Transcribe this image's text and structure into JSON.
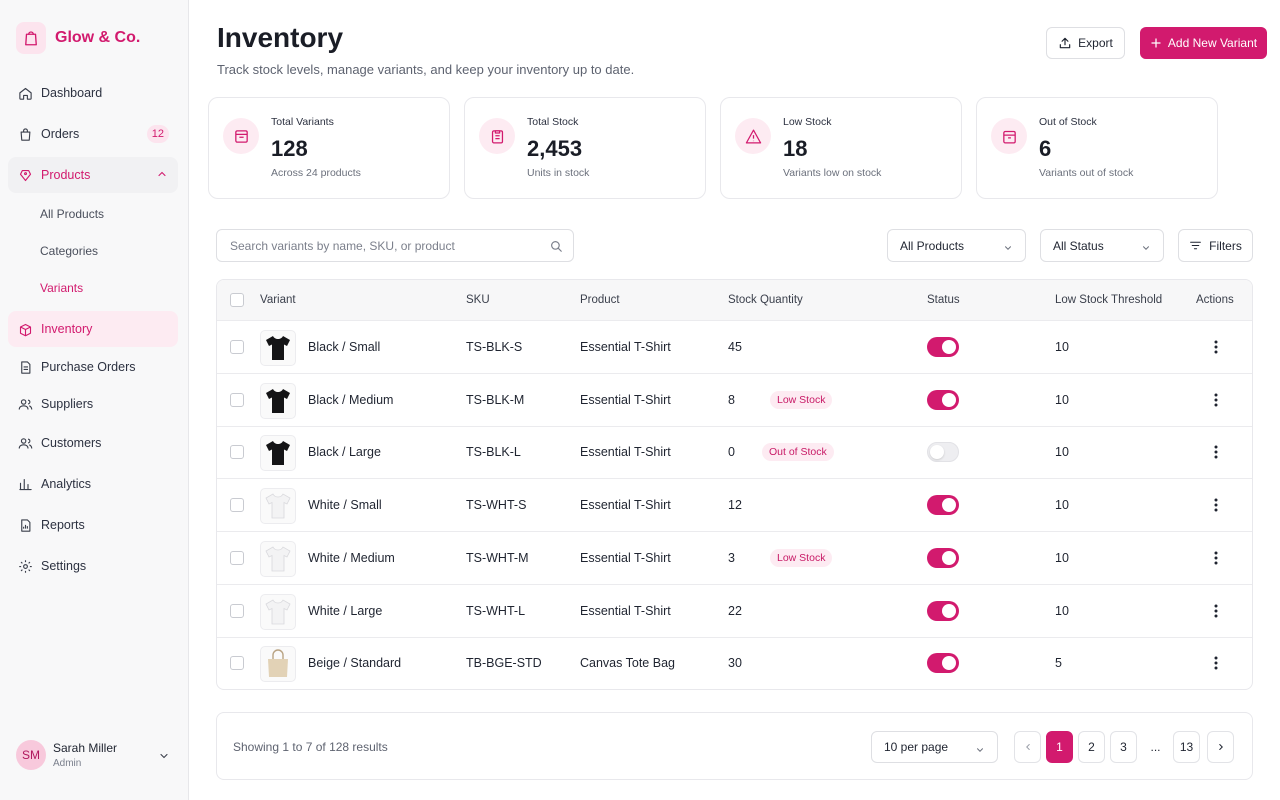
{
  "brand": {
    "name": "Glow & Co.",
    "logo_icon": "shopping-bag-icon"
  },
  "nav": {
    "dashboard": "Dashboard",
    "orders": "Orders",
    "orders_badge": "12",
    "products": "Products",
    "products_sub": [
      "All Products",
      "Categories",
      "Variants"
    ],
    "inventory": "Inventory",
    "purchase_orders": "Purchase Orders",
    "suppliers": "Suppliers",
    "customers": "Customers",
    "analytics": "Analytics",
    "reports": "Reports",
    "settings": "Settings"
  },
  "user": {
    "initials": "SM",
    "name": "Sarah Miller",
    "role": "Admin"
  },
  "header": {
    "title": "Inventory",
    "subtitle": "Track stock levels, manage variants, and keep your inventory up to date.",
    "export_label": "Export",
    "add_label": "Add New Variant"
  },
  "stats": [
    {
      "label": "Total Variants",
      "value": "128",
      "note": "Across 24 products",
      "icon": "box-icon"
    },
    {
      "label": "Total Stock",
      "value": "2,453",
      "note": "Units in stock",
      "icon": "clipboard-icon"
    },
    {
      "label": "Low Stock",
      "value": "18",
      "note": "Variants low on stock",
      "icon": "warning-icon"
    },
    {
      "label": "Out of Stock",
      "value": "6",
      "note": "Variants out of stock",
      "icon": "archive-icon"
    }
  ],
  "toolbar": {
    "search_placeholder": "Search variants by name, SKU, or product",
    "product_filter": "All Products",
    "status_filter": "All Status",
    "filters_label": "Filters"
  },
  "table": {
    "columns": [
      "Variant",
      "SKU",
      "Product",
      "Stock Quantity",
      "Status",
      "Low Stock Threshold",
      "Actions"
    ],
    "rows": [
      {
        "variant": "Black / Small",
        "sku": "TS-BLK-S",
        "product": "Essential T-Shirt",
        "stock": "45",
        "badge": "",
        "active": true,
        "threshold": "10",
        "thumb": "black-tshirt"
      },
      {
        "variant": "Black / Medium",
        "sku": "TS-BLK-M",
        "product": "Essential T-Shirt",
        "stock": "8",
        "badge": "Low Stock",
        "active": true,
        "threshold": "10",
        "thumb": "black-tshirt"
      },
      {
        "variant": "Black / Large",
        "sku": "TS-BLK-L",
        "product": "Essential T-Shirt",
        "stock": "0",
        "badge": "Out of Stock",
        "active": false,
        "threshold": "10",
        "thumb": "black-tshirt"
      },
      {
        "variant": "White / Small",
        "sku": "TS-WHT-S",
        "product": "Essential T-Shirt",
        "stock": "12",
        "badge": "",
        "active": true,
        "threshold": "10",
        "thumb": "white-tshirt"
      },
      {
        "variant": "White / Medium",
        "sku": "TS-WHT-M",
        "product": "Essential T-Shirt",
        "stock": "3",
        "badge": "Low Stock",
        "active": true,
        "threshold": "10",
        "thumb": "white-tshirt"
      },
      {
        "variant": "White / Large",
        "sku": "TS-WHT-L",
        "product": "Essential T-Shirt",
        "stock": "22",
        "badge": "",
        "active": true,
        "threshold": "10",
        "thumb": "white-tshirt"
      },
      {
        "variant": "Beige / Standard",
        "sku": "TB-BGE-STD",
        "product": "Canvas Tote Bag",
        "stock": "30",
        "badge": "",
        "active": true,
        "threshold": "5",
        "thumb": "tote-bag"
      }
    ]
  },
  "footer": {
    "showing": "Showing 1 to 7 of 128 results",
    "per_page": "10 per page",
    "pages": [
      "1",
      "2",
      "3",
      "...",
      "13"
    ],
    "current_page": "1"
  },
  "colors": {
    "accent": "#d21a6e",
    "accent_soft": "#fdebf2",
    "text": "#1f2430",
    "muted": "#5e6370"
  }
}
